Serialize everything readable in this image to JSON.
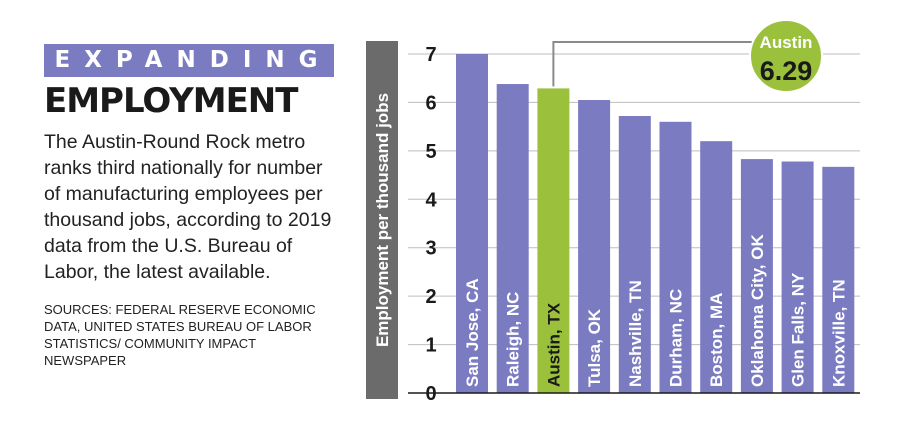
{
  "header": {
    "kicker": "EXPANDING",
    "headline": "EMPLOYMENT"
  },
  "description": "The Austin-Round Rock metro ranks third nationally for number of manufacturing employees per thousand jobs, according to 2019 data from the U.S. Bureau of Labor, the latest available.",
  "sources": "SOURCES: FEDERAL RESERVE ECONOMIC DATA, UNITED STATES BUREAU OF LABOR STATISTICS/ COMMUNITY IMPACT NEWSPAPER",
  "colors": {
    "bar": "#7b7bc2",
    "highlight": "#9bc13c",
    "axis_band": "#6b6b6b",
    "grid": "#bdbdbd"
  },
  "chart_data": {
    "type": "bar",
    "ylabel": "Employment per thousand jobs",
    "ylim": [
      0,
      7
    ],
    "yticks": [
      "0",
      "1",
      "2",
      "3",
      "4",
      "5",
      "6",
      "7"
    ],
    "grid": true,
    "categories": [
      "San Jose, CA",
      "Raleigh, NC",
      "Austin, TX",
      "Tulsa, OK",
      "Nashville, TN",
      "Durham, NC",
      "Boston, MA",
      "Oklahoma City, OK",
      "Glen Falls, NY",
      "Knoxville, TN"
    ],
    "values": [
      7.0,
      6.38,
      6.29,
      6.05,
      5.72,
      5.6,
      5.2,
      4.83,
      4.78,
      4.67
    ],
    "highlight_index": 2,
    "callout": {
      "label": "Austin",
      "value": "6.29"
    }
  }
}
